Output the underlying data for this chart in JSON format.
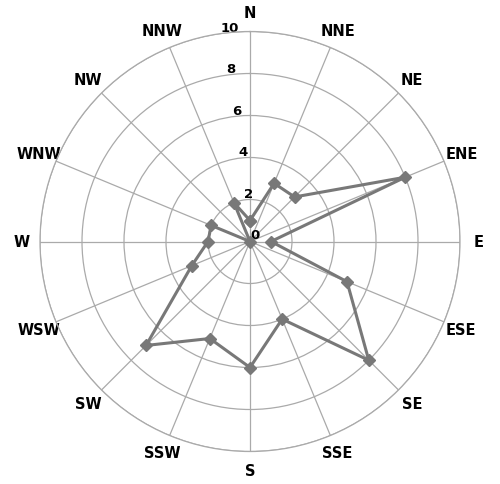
{
  "directions": [
    "N",
    "NNE",
    "NE",
    "ENE",
    "E",
    "ESE",
    "SE",
    "SSE",
    "S",
    "SSW",
    "SW",
    "WSW",
    "W",
    "WNW",
    "NW",
    "NNW"
  ],
  "values": [
    1,
    3,
    3,
    8,
    1,
    5,
    8,
    4,
    6,
    5,
    7,
    3,
    2,
    2,
    0,
    2
  ],
  "rmax": 10,
  "rticks": [
    0,
    2,
    4,
    6,
    8,
    10
  ],
  "line_color": "#787878",
  "marker": "D",
  "linewidth": 2.2,
  "markersize": 6,
  "grid_color": "#aaaaaa",
  "label_fontsize": 10.5,
  "tick_fontsize": 9.5,
  "tick_fontweight": "bold",
  "label_fontweight": "bold",
  "figsize": [
    5.0,
    4.85
  ],
  "dpi": 100
}
